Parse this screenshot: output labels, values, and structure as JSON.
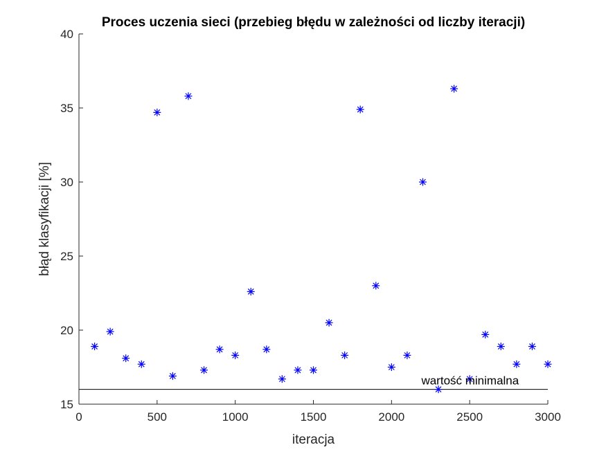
{
  "chart_data": {
    "type": "scatter",
    "title": "Proces uczenia sieci (przebieg błędu w zależności od liczby iteracji)",
    "xlabel": "iteracja",
    "ylabel": "błąd klasyfikacji [%]",
    "xlim": [
      0,
      3000
    ],
    "ylim": [
      15,
      40
    ],
    "xticks": [
      0,
      500,
      1000,
      1500,
      2000,
      2500,
      3000
    ],
    "yticks": [
      15,
      20,
      25,
      30,
      35,
      40
    ],
    "grid": false,
    "marker": "*",
    "marker_color": "#0000ff",
    "series": [
      {
        "x": [
          100,
          200,
          300,
          400,
          500,
          600,
          700,
          800,
          900,
          1000,
          1100,
          1200,
          1300,
          1400,
          1500,
          1600,
          1700,
          1800,
          1900,
          2000,
          2100,
          2200,
          2300,
          2400,
          2500,
          2600,
          2700,
          2800,
          2900,
          3000
        ],
        "y": [
          18.9,
          19.9,
          18.1,
          17.7,
          34.7,
          16.9,
          35.8,
          17.3,
          18.7,
          18.3,
          22.6,
          18.7,
          16.7,
          17.3,
          17.3,
          20.5,
          18.3,
          34.9,
          23.0,
          17.5,
          18.3,
          30.0,
          16.0,
          36.3,
          16.7,
          19.7,
          18.9,
          17.7,
          18.9,
          17.7
        ]
      }
    ],
    "reference_line": {
      "y": 16.0,
      "x_range": [
        0,
        3000
      ],
      "color": "#000000",
      "label": "wartość minimalna",
      "label_x": 2200
    }
  }
}
